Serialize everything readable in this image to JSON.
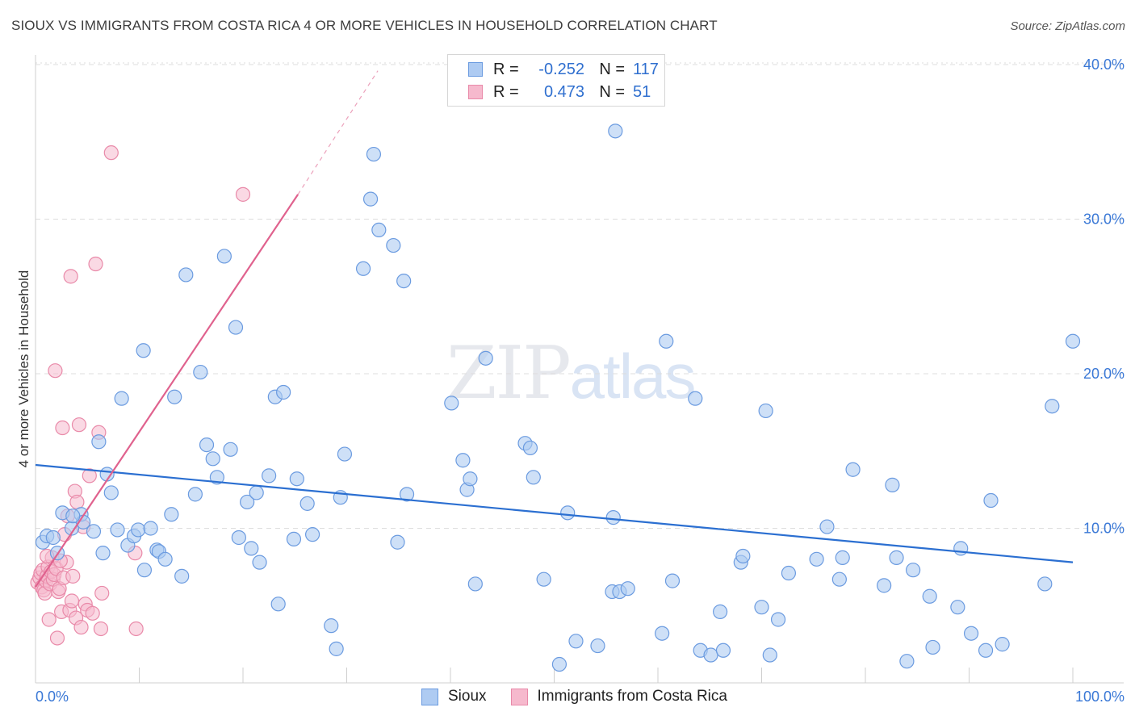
{
  "header": {
    "title": "SIOUX VS IMMIGRANTS FROM COSTA RICA 4 OR MORE VEHICLES IN HOUSEHOLD CORRELATION CHART",
    "source": "Source: ZipAtlas.com"
  },
  "watermark": {
    "zip": "ZIP",
    "atlas": "atlas"
  },
  "legend": {
    "rows": [
      {
        "r_label": "R =",
        "r_value": "-0.252",
        "n_label": "N =",
        "n_value": "117"
      },
      {
        "r_label": "R =",
        "r_value": "0.473",
        "n_label": "N =",
        "n_value": "51"
      }
    ]
  },
  "bottom_legend": {
    "sioux": "Sioux",
    "costa_rica": "Immigrants from Costa Rica"
  },
  "colors": {
    "sioux_fill": "#aecbf2",
    "sioux_stroke": "#6b9be0",
    "sioux_line": "#2b6fd1",
    "cr_fill": "#f6b9cd",
    "cr_stroke": "#e98aa9",
    "cr_line": "#e0628e",
    "grid": "#dddddd",
    "tick_text": "#3a78d6"
  },
  "chart_data": {
    "type": "scatter",
    "title": "SIOUX VS IMMIGRANTS FROM COSTA RICA 4 OR MORE VEHICLES IN HOUSEHOLD CORRELATION CHART",
    "xlabel": "",
    "ylabel": "4 or more Vehicles in Household",
    "xlim": [
      0,
      100
    ],
    "ylim": [
      0,
      42
    ],
    "x_tick_labels": [
      "0.0%",
      "100.0%"
    ],
    "y_ticks": [
      10,
      20,
      30,
      40
    ],
    "y_tick_labels": [
      "10.0%",
      "20.0%",
      "30.0%",
      "40.0%"
    ],
    "grid": true,
    "series": [
      {
        "name": "Sioux",
        "r": -0.252,
        "n": 117,
        "trend": {
          "x0": 0,
          "y0": 14.1,
          "x1": 100,
          "y1": 7.8
        },
        "points": [
          [
            0.7,
            9.1
          ],
          [
            1.1,
            9.5
          ],
          [
            1.7,
            9.4
          ],
          [
            2.1,
            8.4
          ],
          [
            2.6,
            11.0
          ],
          [
            3.5,
            10.0
          ],
          [
            4.4,
            10.9
          ],
          [
            4.6,
            10.4
          ],
          [
            5.6,
            9.8
          ],
          [
            6.1,
            15.6
          ],
          [
            6.5,
            8.4
          ],
          [
            6.9,
            13.5
          ],
          [
            7.3,
            12.3
          ],
          [
            7.9,
            9.9
          ],
          [
            8.3,
            18.4
          ],
          [
            8.9,
            8.9
          ],
          [
            9.5,
            9.5
          ],
          [
            9.9,
            9.9
          ],
          [
            10.4,
            21.5
          ],
          [
            10.5,
            7.3
          ],
          [
            11.1,
            10.0
          ],
          [
            11.7,
            8.6
          ],
          [
            11.9,
            8.5
          ],
          [
            12.5,
            8.0
          ],
          [
            13.1,
            10.9
          ],
          [
            13.4,
            18.5
          ],
          [
            14.1,
            6.9
          ],
          [
            14.5,
            26.4
          ],
          [
            15.4,
            12.2
          ],
          [
            15.9,
            20.1
          ],
          [
            16.5,
            15.4
          ],
          [
            17.1,
            14.5
          ],
          [
            17.5,
            13.3
          ],
          [
            18.2,
            27.6
          ],
          [
            18.8,
            15.1
          ],
          [
            19.3,
            23.0
          ],
          [
            19.6,
            9.4
          ],
          [
            20.4,
            11.7
          ],
          [
            20.8,
            8.7
          ],
          [
            21.3,
            12.3
          ],
          [
            21.6,
            7.8
          ],
          [
            22.5,
            13.4
          ],
          [
            23.1,
            18.5
          ],
          [
            23.4,
            5.1
          ],
          [
            23.9,
            18.8
          ],
          [
            24.9,
            9.3
          ],
          [
            25.2,
            13.2
          ],
          [
            26.2,
            11.6
          ],
          [
            26.7,
            9.6
          ],
          [
            28.5,
            3.7
          ],
          [
            29.0,
            2.2
          ],
          [
            29.4,
            12.0
          ],
          [
            29.8,
            14.8
          ],
          [
            31.6,
            26.8
          ],
          [
            32.3,
            31.3
          ],
          [
            32.6,
            34.2
          ],
          [
            33.1,
            29.3
          ],
          [
            34.5,
            28.3
          ],
          [
            34.9,
            9.1
          ],
          [
            35.5,
            26.0
          ],
          [
            35.8,
            12.2
          ],
          [
            40.1,
            18.1
          ],
          [
            41.2,
            14.4
          ],
          [
            41.6,
            12.5
          ],
          [
            41.9,
            13.2
          ],
          [
            42.4,
            6.4
          ],
          [
            43.4,
            21.0
          ],
          [
            47.2,
            15.5
          ],
          [
            47.7,
            15.2
          ],
          [
            48.0,
            13.3
          ],
          [
            49.0,
            6.7
          ],
          [
            50.5,
            1.2
          ],
          [
            51.3,
            11.0
          ],
          [
            52.1,
            2.7
          ],
          [
            54.2,
            2.4
          ],
          [
            55.6,
            5.9
          ],
          [
            55.7,
            10.7
          ],
          [
            55.9,
            35.7
          ],
          [
            56.3,
            5.9
          ],
          [
            57.1,
            6.1
          ],
          [
            60.4,
            3.2
          ],
          [
            60.8,
            22.1
          ],
          [
            61.4,
            6.6
          ],
          [
            63.6,
            18.4
          ],
          [
            64.1,
            2.1
          ],
          [
            65.1,
            1.8
          ],
          [
            66.0,
            4.6
          ],
          [
            66.3,
            2.1
          ],
          [
            68.0,
            7.8
          ],
          [
            68.2,
            8.2
          ],
          [
            70.0,
            4.9
          ],
          [
            70.4,
            17.6
          ],
          [
            70.8,
            1.8
          ],
          [
            71.6,
            4.1
          ],
          [
            72.6,
            7.1
          ],
          [
            75.3,
            8.0
          ],
          [
            76.3,
            10.1
          ],
          [
            77.5,
            6.7
          ],
          [
            77.8,
            8.1
          ],
          [
            78.8,
            13.8
          ],
          [
            81.8,
            6.3
          ],
          [
            82.6,
            12.8
          ],
          [
            83.0,
            8.1
          ],
          [
            84.0,
            1.4
          ],
          [
            84.6,
            7.3
          ],
          [
            86.2,
            5.6
          ],
          [
            86.5,
            2.3
          ],
          [
            88.9,
            4.9
          ],
          [
            89.2,
            8.7
          ],
          [
            90.2,
            3.2
          ],
          [
            91.6,
            2.1
          ],
          [
            92.1,
            11.8
          ],
          [
            93.2,
            2.5
          ],
          [
            97.3,
            6.4
          ],
          [
            98.0,
            17.9
          ],
          [
            100.0,
            22.1
          ],
          [
            3.6,
            10.8
          ]
        ]
      },
      {
        "name": "Immigrants from Costa Rica",
        "r": 0.473,
        "n": 51,
        "trend": {
          "x0": 0,
          "y0": 6.2,
          "x1": 25.3,
          "y1": 31.6,
          "dash_to_x": 33,
          "dash_to_y": 39.6
        },
        "points": [
          [
            0.2,
            6.5
          ],
          [
            0.4,
            6.8
          ],
          [
            0.5,
            7.1
          ],
          [
            0.6,
            6.2
          ],
          [
            0.7,
            7.3
          ],
          [
            0.8,
            6.0
          ],
          [
            0.9,
            5.8
          ],
          [
            1.0,
            6.6
          ],
          [
            1.1,
            6.9
          ],
          [
            1.2,
            7.5
          ],
          [
            1.4,
            6.4
          ],
          [
            1.5,
            7.2
          ],
          [
            1.6,
            8.1
          ],
          [
            1.7,
            6.7
          ],
          [
            1.8,
            7.0
          ],
          [
            1.9,
            20.2
          ],
          [
            2.0,
            7.4
          ],
          [
            2.1,
            2.9
          ],
          [
            2.2,
            5.9
          ],
          [
            2.3,
            6.1
          ],
          [
            2.5,
            4.6
          ],
          [
            2.6,
            16.5
          ],
          [
            2.7,
            6.8
          ],
          [
            2.8,
            9.6
          ],
          [
            3.0,
            7.8
          ],
          [
            3.1,
            10.8
          ],
          [
            3.3,
            4.7
          ],
          [
            3.4,
            26.3
          ],
          [
            3.5,
            5.3
          ],
          [
            3.6,
            6.9
          ],
          [
            3.8,
            12.4
          ],
          [
            3.9,
            4.2
          ],
          [
            4.0,
            11.7
          ],
          [
            4.2,
            16.7
          ],
          [
            4.4,
            3.6
          ],
          [
            4.6,
            10.1
          ],
          [
            4.8,
            5.1
          ],
          [
            5.0,
            4.7
          ],
          [
            5.2,
            13.4
          ],
          [
            5.5,
            4.5
          ],
          [
            5.8,
            27.1
          ],
          [
            6.1,
            16.2
          ],
          [
            6.3,
            3.5
          ],
          [
            6.4,
            5.8
          ],
          [
            7.3,
            34.3
          ],
          [
            9.6,
            8.4
          ],
          [
            9.7,
            3.5
          ],
          [
            20.0,
            31.6
          ],
          [
            1.3,
            4.1
          ],
          [
            2.4,
            7.9
          ],
          [
            1.1,
            8.2
          ]
        ]
      }
    ]
  }
}
